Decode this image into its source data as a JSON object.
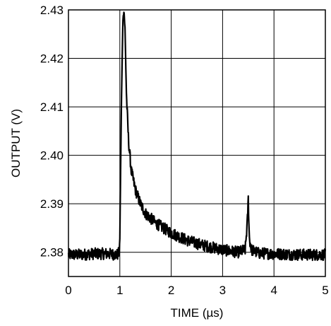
{
  "chart_data": {
    "type": "line",
    "title": "",
    "xlabel": "TIME (µs)",
    "ylabel": "OUTPUT (V)",
    "xlim": [
      0,
      5
    ],
    "ylim": [
      2.375,
      2.43
    ],
    "x_ticks": [
      0,
      1,
      2,
      3,
      4,
      5
    ],
    "x_tick_labels": [
      "0",
      "1",
      "2",
      "3",
      "4",
      "5"
    ],
    "y_ticks": [
      2.38,
      2.39,
      2.4,
      2.41,
      2.42,
      2.43
    ],
    "y_tick_labels": [
      "2.38",
      "2.39",
      "2.40",
      "2.41",
      "2.42",
      "2.43"
    ],
    "grid": true,
    "legend": "none",
    "series": [
      {
        "color": "#000000",
        "baseline_noise_amplitude": 0.0012,
        "x": [
          0,
          0.25,
          0.5,
          0.75,
          0.95,
          0.99,
          1.0,
          1.03,
          1.06,
          1.08,
          1.1,
          1.13,
          1.17,
          1.22,
          1.3,
          1.4,
          1.5,
          1.7,
          2.0,
          2.3,
          2.6,
          3.0,
          3.3,
          3.44,
          3.48,
          3.5,
          3.52,
          3.56,
          3.7,
          4.0,
          4.5,
          5.0
        ],
        "y": [
          2.3795,
          2.3795,
          2.3797,
          2.3797,
          2.3795,
          2.38,
          2.383,
          2.41,
          2.428,
          2.43,
          2.426,
          2.412,
          2.403,
          2.397,
          2.393,
          2.39,
          2.388,
          2.386,
          2.384,
          2.3825,
          2.3815,
          2.3805,
          2.38,
          2.3805,
          2.386,
          2.391,
          2.383,
          2.3805,
          2.3798,
          2.3797,
          2.3795,
          2.3795
        ]
      }
    ]
  }
}
